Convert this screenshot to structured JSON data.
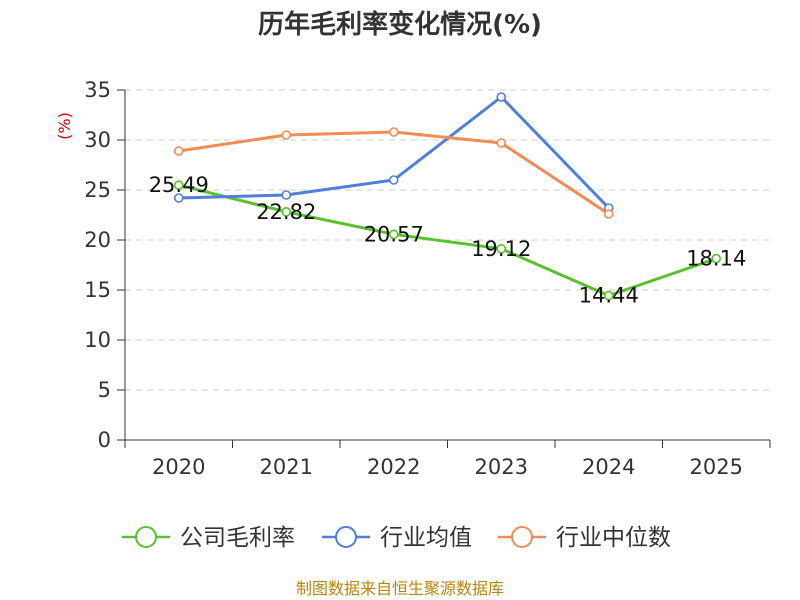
{
  "chart_data": {
    "type": "line",
    "title": "历年毛利率变化情况(%)",
    "unit_label": "(%)",
    "categories": [
      "2020",
      "2021",
      "2022",
      "2023",
      "2024",
      "2025"
    ],
    "ylim": [
      0,
      35
    ],
    "yticks": [
      0,
      5,
      10,
      15,
      20,
      25,
      30,
      35
    ],
    "grid": true,
    "legend_position": "bottom",
    "series": [
      {
        "name": "公司毛利率",
        "color": "#5ac12e",
        "values": [
          25.49,
          22.82,
          20.57,
          19.12,
          14.44,
          18.14
        ],
        "labels": [
          "25.49",
          "22.82",
          "20.57",
          "19.12",
          "14.44",
          "18.14"
        ]
      },
      {
        "name": "行业均值",
        "color": "#4f7fdb",
        "values": [
          24.2,
          24.5,
          26.0,
          34.3,
          23.2,
          null
        ]
      },
      {
        "name": "行业中位数",
        "color": "#f28b54",
        "values": [
          28.9,
          30.5,
          30.8,
          29.7,
          22.6,
          null
        ]
      }
    ]
  },
  "source": "制图数据来自恒生聚源数据库"
}
